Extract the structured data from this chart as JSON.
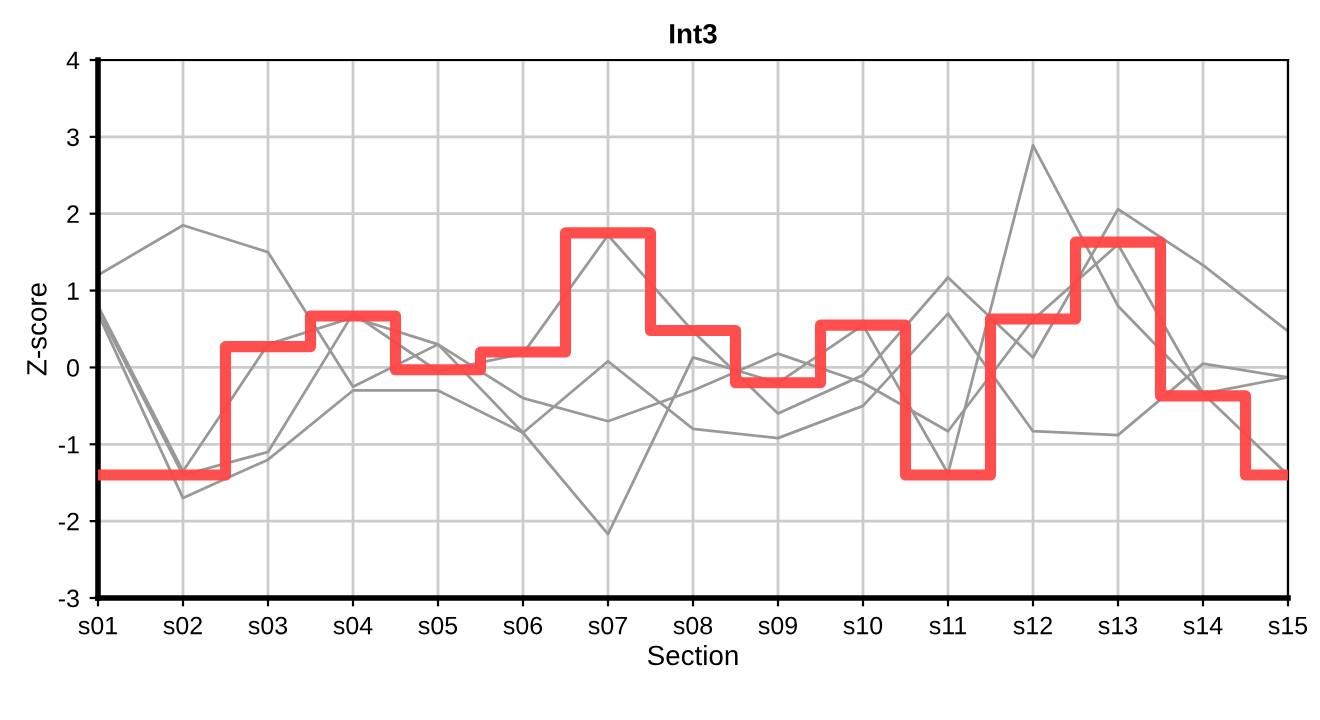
{
  "chart_data": {
    "type": "line",
    "title": "Int3",
    "xlabel": "Section",
    "ylabel": "Z-score",
    "categories": [
      "s01",
      "s02",
      "s03",
      "s04",
      "s05",
      "s06",
      "s07",
      "s08",
      "s09",
      "s10",
      "s11",
      "s12",
      "s13",
      "s14",
      "s15"
    ],
    "ylim": [
      -3,
      4
    ],
    "yticks": [
      -3,
      -2,
      -1,
      0,
      1,
      2,
      3,
      4
    ],
    "grid": true,
    "series": [
      {
        "color": "#999999",
        "values": [
          1.2,
          1.85,
          1.5,
          -0.25,
          0.3,
          -0.4,
          -0.7,
          -0.3,
          0.18,
          -0.2,
          -0.83,
          0.62,
          1.6,
          -0.34,
          -0.13
        ]
      },
      {
        "color": "#999999",
        "values": [
          0.8,
          -1.35,
          0.3,
          0.65,
          0.3,
          -0.85,
          -2.17,
          0.13,
          -0.2,
          0.55,
          -1.38,
          2.89,
          0.8,
          -0.34,
          -1.4
        ]
      },
      {
        "color": "#999999",
        "values": [
          0.75,
          -1.4,
          -1.1,
          0.7,
          -0.05,
          0.18,
          1.72,
          0.47,
          -0.6,
          -0.1,
          1.17,
          0.13,
          2.06,
          1.33,
          0.47
        ]
      },
      {
        "color": "#999999",
        "values": [
          0.7,
          -1.7,
          -1.2,
          -0.3,
          -0.3,
          -0.85,
          0.08,
          -0.8,
          -0.92,
          -0.5,
          0.7,
          -0.83,
          -0.88,
          0.05,
          -0.13
        ]
      },
      {
        "type": "step",
        "color": "#ff4444",
        "values": [
          -1.4,
          -1.4,
          0.27,
          0.67,
          -0.03,
          0.2,
          1.75,
          0.48,
          -0.2,
          0.55,
          -1.4,
          0.63,
          1.63,
          -0.37,
          -1.4
        ]
      }
    ]
  }
}
